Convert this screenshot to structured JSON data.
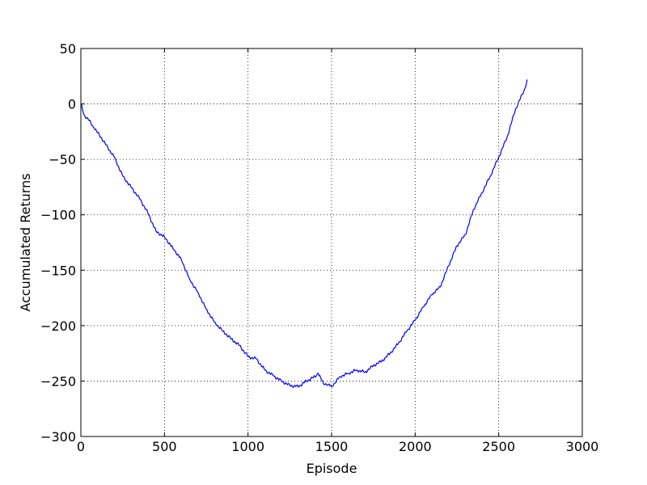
{
  "chart_data": {
    "type": "line",
    "title": "",
    "xlabel": "Episode",
    "ylabel": "Accumulated Returns",
    "xlim": [
      0,
      3000
    ],
    "ylim": [
      -300,
      50
    ],
    "xticks": [
      0,
      500,
      1000,
      1500,
      2000,
      2500,
      3000
    ],
    "yticks": [
      50,
      0,
      -50,
      -100,
      -150,
      -200,
      -250,
      -300
    ],
    "xtick_labels": [
      "0",
      "500",
      "1000",
      "1500",
      "2000",
      "2500",
      "3000"
    ],
    "ytick_labels": [
      "50",
      "0",
      "−50",
      "−100",
      "−150",
      "−200",
      "−250",
      "−300"
    ],
    "grid": true,
    "line_color": "#0000ff",
    "series": [
      {
        "x": [
          0,
          20,
          50,
          80,
          120,
          150,
          200,
          250,
          300,
          350,
          400,
          450,
          500,
          550,
          600,
          650,
          700,
          750,
          800,
          850,
          900,
          950,
          1000,
          1050,
          1100,
          1150,
          1200,
          1250,
          1300,
          1350,
          1400,
          1420,
          1450,
          1480,
          1500,
          1550,
          1600,
          1650,
          1700,
          1750,
          1800,
          1850,
          1900,
          1950,
          2000,
          2050,
          2100,
          2150,
          2200,
          2250,
          2300,
          2350,
          2400,
          2450,
          2500,
          2550,
          2600,
          2630,
          2660,
          2670
        ],
        "y": [
          0,
          -10,
          -15,
          -22,
          -30,
          -37,
          -48,
          -65,
          -75,
          -85,
          -98,
          -115,
          -120,
          -130,
          -140,
          -158,
          -170,
          -185,
          -197,
          -205,
          -212,
          -218,
          -228,
          -230,
          -240,
          -245,
          -250,
          -254,
          -255,
          -250,
          -246,
          -243,
          -252,
          -253,
          -255,
          -246,
          -243,
          -240,
          -242,
          -236,
          -232,
          -225,
          -216,
          -205,
          -195,
          -183,
          -172,
          -165,
          -146,
          -128,
          -118,
          -95,
          -80,
          -65,
          -48,
          -30,
          -5,
          5,
          15,
          22
        ]
      }
    ]
  }
}
